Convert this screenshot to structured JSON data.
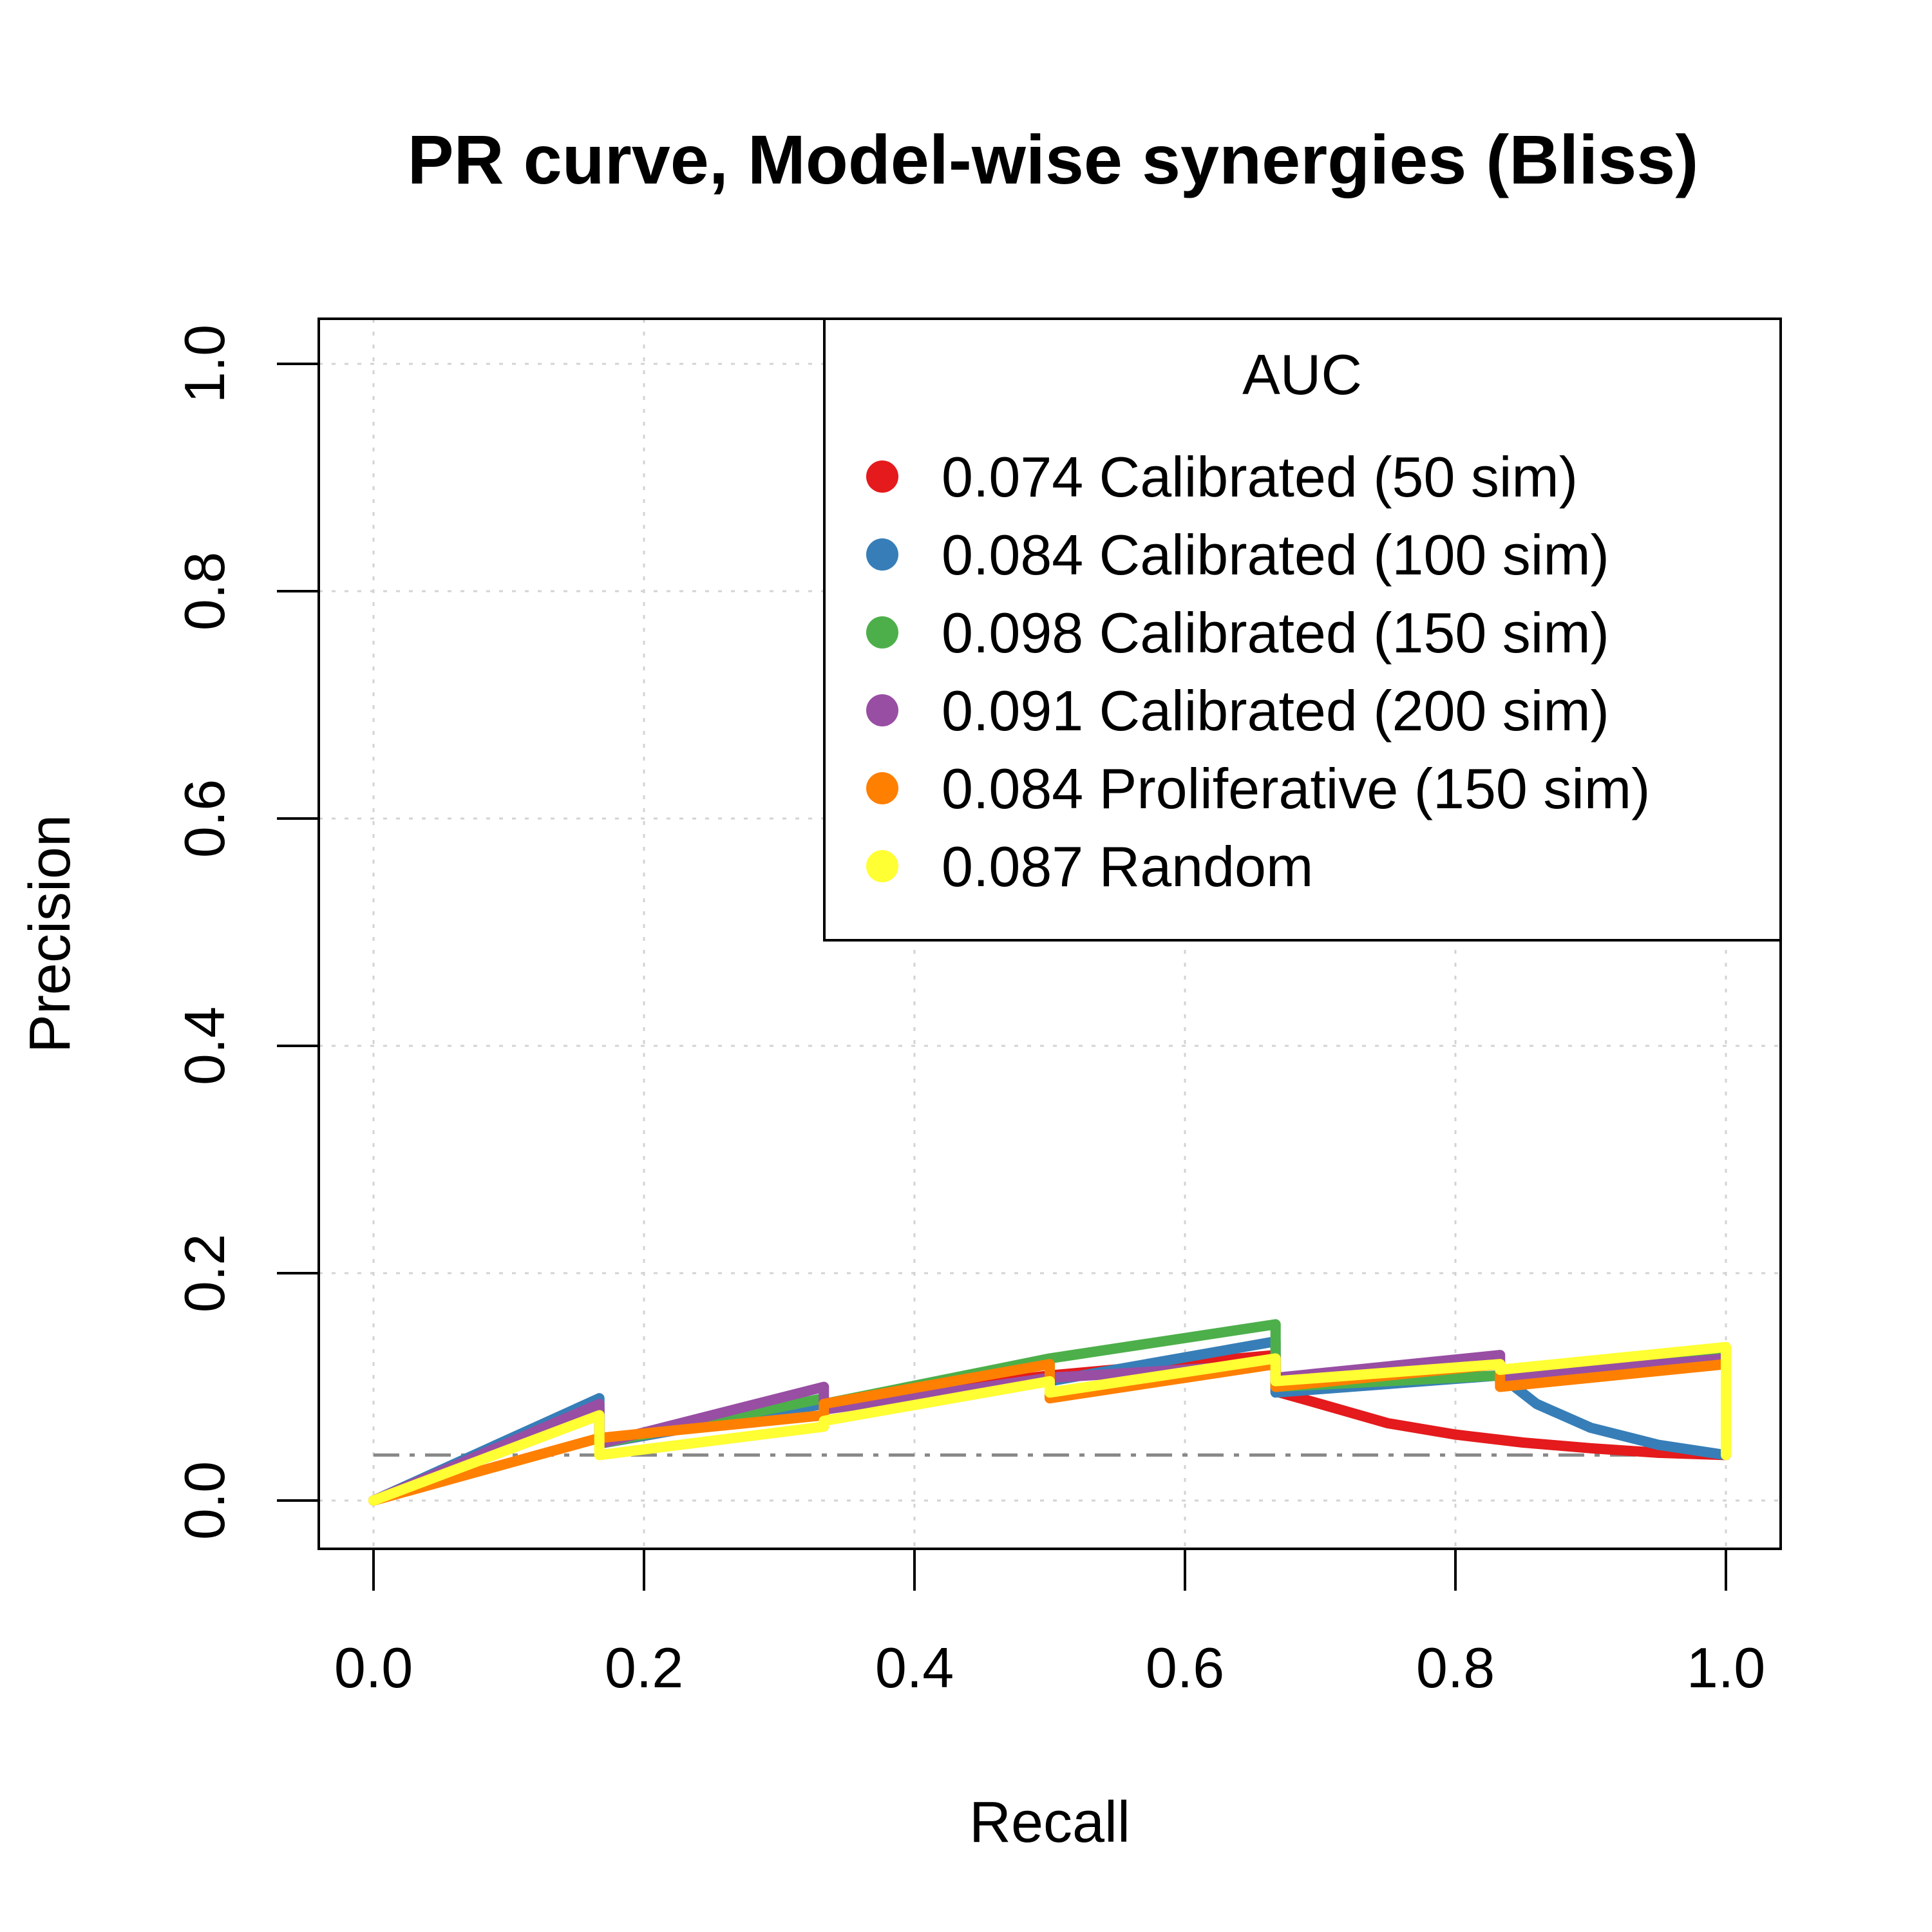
{
  "chart_data": {
    "type": "line",
    "title": "PR curve, Model-wise synergies (Bliss)",
    "xlabel": "Recall",
    "ylabel": "Precision",
    "xlim": [
      0,
      1
    ],
    "ylim": [
      0,
      1
    ],
    "x_ticks": [
      "0.0",
      "0.2",
      "0.4",
      "0.6",
      "0.8",
      "1.0"
    ],
    "y_ticks": [
      "0.0",
      "0.2",
      "0.4",
      "0.6",
      "0.8",
      "1.0"
    ],
    "grid": true,
    "baseline": {
      "y": 0.04,
      "color": "#888888",
      "style": "dash-dot"
    },
    "legend": {
      "title": "AUC",
      "placement": "top-right",
      "entries": [
        {
          "label": "0.074 Calibrated (50 sim)",
          "color": "#E41A1C"
        },
        {
          "label": "0.084 Calibrated (100 sim)",
          "color": "#377EB8"
        },
        {
          "label": "0.098 Calibrated (150 sim)",
          "color": "#4DAF4A"
        },
        {
          "label": "0.091 Calibrated (200 sim)",
          "color": "#984EA3"
        },
        {
          "label": "0.084 Proliferative (150 sim)",
          "color": "#FF7F00"
        },
        {
          "label": "0.087 Random",
          "color": "#FFFF33"
        }
      ]
    },
    "series": [
      {
        "auc": 0.074,
        "color": "#E41A1C",
        "x": [
          0.0,
          0.167,
          0.167,
          0.333,
          0.333,
          0.5,
          0.5,
          0.667,
          0.667,
          0.7,
          0.75,
          0.8,
          0.85,
          0.9,
          0.95,
          1.0
        ],
        "y": [
          0.0,
          0.08,
          0.05,
          0.085,
          0.085,
          0.11,
          0.11,
          0.128,
          0.096,
          0.085,
          0.068,
          0.058,
          0.051,
          0.046,
          0.042,
          0.04
        ]
      },
      {
        "auc": 0.084,
        "color": "#377EB8",
        "x": [
          0.0,
          0.167,
          0.167,
          0.333,
          0.333,
          0.5,
          0.5,
          0.667,
          0.667,
          0.833,
          0.86,
          0.9,
          0.95,
          1.0
        ],
        "y": [
          0.0,
          0.09,
          0.05,
          0.085,
          0.085,
          0.105,
          0.105,
          0.14,
          0.095,
          0.11,
          0.085,
          0.064,
          0.049,
          0.04
        ]
      },
      {
        "auc": 0.098,
        "color": "#4DAF4A",
        "x": [
          0.0,
          0.167,
          0.167,
          0.333,
          0.333,
          0.5,
          0.5,
          0.667,
          0.667,
          0.833,
          0.833,
          1.0
        ],
        "y": [
          0.0,
          0.08,
          0.05,
          0.09,
          0.085,
          0.125,
          0.125,
          0.155,
          0.1,
          0.11,
          0.105,
          0.13
        ]
      },
      {
        "auc": 0.091,
        "color": "#984EA3",
        "x": [
          0.0,
          0.167,
          0.167,
          0.333,
          0.333,
          0.5,
          0.5,
          0.667,
          0.667,
          0.833,
          0.833,
          1.0
        ],
        "y": [
          0.0,
          0.085,
          0.05,
          0.1,
          0.08,
          0.108,
          0.108,
          0.12,
          0.108,
          0.128,
          0.108,
          0.125
        ]
      },
      {
        "auc": 0.084,
        "color": "#FF7F00",
        "x": [
          0.0,
          0.167,
          0.167,
          0.333,
          0.333,
          0.5,
          0.5,
          0.667,
          0.667,
          0.833,
          0.833,
          1.0
        ],
        "y": [
          0.0,
          0.055,
          0.055,
          0.075,
          0.085,
          0.12,
          0.09,
          0.12,
          0.1,
          0.12,
          0.1,
          0.12
        ]
      },
      {
        "auc": 0.087,
        "color": "#FFFF33",
        "x": [
          0.0,
          0.167,
          0.167,
          0.333,
          0.333,
          0.5,
          0.5,
          0.667,
          0.667,
          0.833,
          0.833,
          1.0,
          1.0
        ],
        "y": [
          0.0,
          0.075,
          0.04,
          0.065,
          0.07,
          0.105,
          0.095,
          0.125,
          0.105,
          0.12,
          0.115,
          0.135,
          0.04
        ]
      }
    ]
  }
}
